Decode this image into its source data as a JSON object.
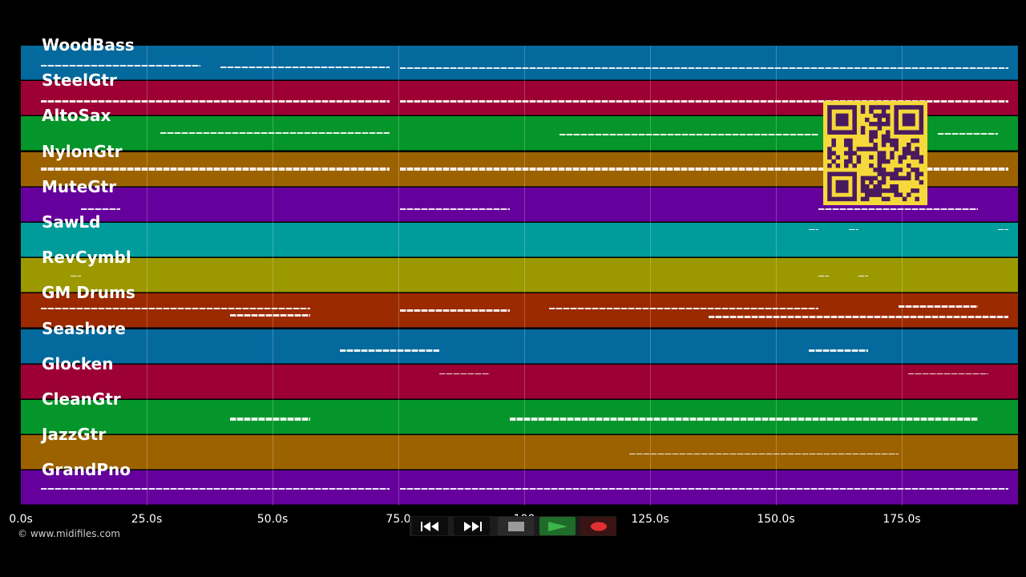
{
  "tracks": [
    {
      "name": "WoodBass",
      "color": "#04699d",
      "notes": [
        [
          0.02,
          0.18,
          0.55,
          0.05
        ],
        [
          0.2,
          0.37,
          0.6,
          0.05
        ],
        [
          0.38,
          0.99,
          0.62,
          0.05
        ]
      ]
    },
    {
      "name": "SteelGtr",
      "color": "#9c0034",
      "notes": [
        [
          0.02,
          0.37,
          0.55,
          0.07
        ],
        [
          0.38,
          0.99,
          0.55,
          0.07
        ]
      ]
    },
    {
      "name": "AltoSax",
      "color": "#04962a",
      "notes": [
        [
          0.14,
          0.37,
          0.45,
          0.05
        ],
        [
          0.54,
          0.8,
          0.5,
          0.05
        ],
        [
          0.92,
          0.98,
          0.48,
          0.05
        ]
      ]
    },
    {
      "name": "NylonGtr",
      "color": "#9d6200",
      "notes": [
        [
          0.02,
          0.37,
          0.45,
          0.1
        ],
        [
          0.38,
          0.99,
          0.45,
          0.1
        ]
      ]
    },
    {
      "name": "MuteGtr",
      "color": "#66009c",
      "notes": [
        [
          0.06,
          0.1,
          0.62,
          0.04
        ],
        [
          0.38,
          0.49,
          0.62,
          0.04
        ],
        [
          0.8,
          0.96,
          0.62,
          0.04
        ]
      ]
    },
    {
      "name": "SawLd",
      "color": "#009c9c",
      "notes": [
        [
          0.79,
          0.8,
          0.18,
          0.04
        ],
        [
          0.83,
          0.84,
          0.18,
          0.04
        ],
        [
          0.98,
          0.99,
          0.18,
          0.04
        ]
      ]
    },
    {
      "name": "RevCymbl",
      "color": "#9c9900",
      "notes": [
        [
          0.05,
          0.06,
          0.5,
          0.04
        ],
        [
          0.8,
          0.81,
          0.5,
          0.04
        ],
        [
          0.84,
          0.85,
          0.5,
          0.04
        ]
      ]
    },
    {
      "name": "GM Drums",
      "color": "#9c2a00",
      "notes": [
        [
          0.02,
          0.29,
          0.4,
          0.06
        ],
        [
          0.21,
          0.29,
          0.6,
          0.06
        ],
        [
          0.38,
          0.49,
          0.45,
          0.08
        ],
        [
          0.53,
          0.8,
          0.4,
          0.06
        ],
        [
          0.69,
          0.99,
          0.65,
          0.06
        ],
        [
          0.88,
          0.96,
          0.35,
          0.06
        ]
      ]
    },
    {
      "name": "Seashore",
      "color": "#04699d",
      "notes": [
        [
          0.32,
          0.42,
          0.6,
          0.05
        ],
        [
          0.79,
          0.85,
          0.6,
          0.05
        ]
      ]
    },
    {
      "name": "Glocken",
      "color": "#9c0034",
      "notes": [
        [
          0.42,
          0.47,
          0.25,
          0.04
        ],
        [
          0.89,
          0.97,
          0.25,
          0.04
        ]
      ]
    },
    {
      "name": "CleanGtr",
      "color": "#04962a",
      "notes": [
        [
          0.21,
          0.29,
          0.5,
          0.1
        ],
        [
          0.49,
          0.96,
          0.5,
          0.1
        ]
      ]
    },
    {
      "name": "JazzGtr",
      "color": "#9d6200",
      "notes": [
        [
          0.61,
          0.88,
          0.52,
          0.04
        ]
      ]
    },
    {
      "name": "GrandPno",
      "color": "#66009c",
      "notes": [
        [
          0.02,
          0.37,
          0.5,
          0.06
        ],
        [
          0.38,
          0.99,
          0.5,
          0.06
        ]
      ]
    }
  ],
  "time_axis": {
    "ticks": [
      "0.0s",
      "25.0s",
      "50.0s",
      "75.0",
      "100",
      "125.0s",
      "150.0s",
      "175.0s"
    ]
  },
  "copyright": "© www.midifiles.com",
  "transport": {
    "rewind": "rewind-icon",
    "fast_forward": "fast-forward-icon",
    "stop": "stop-icon",
    "play": "play-icon",
    "record": "record-icon",
    "play_color": "#3cb64a",
    "record_color": "#e03030"
  },
  "qr_code": {
    "fg": "#4a1a5e",
    "bg": "#f5d93a"
  }
}
